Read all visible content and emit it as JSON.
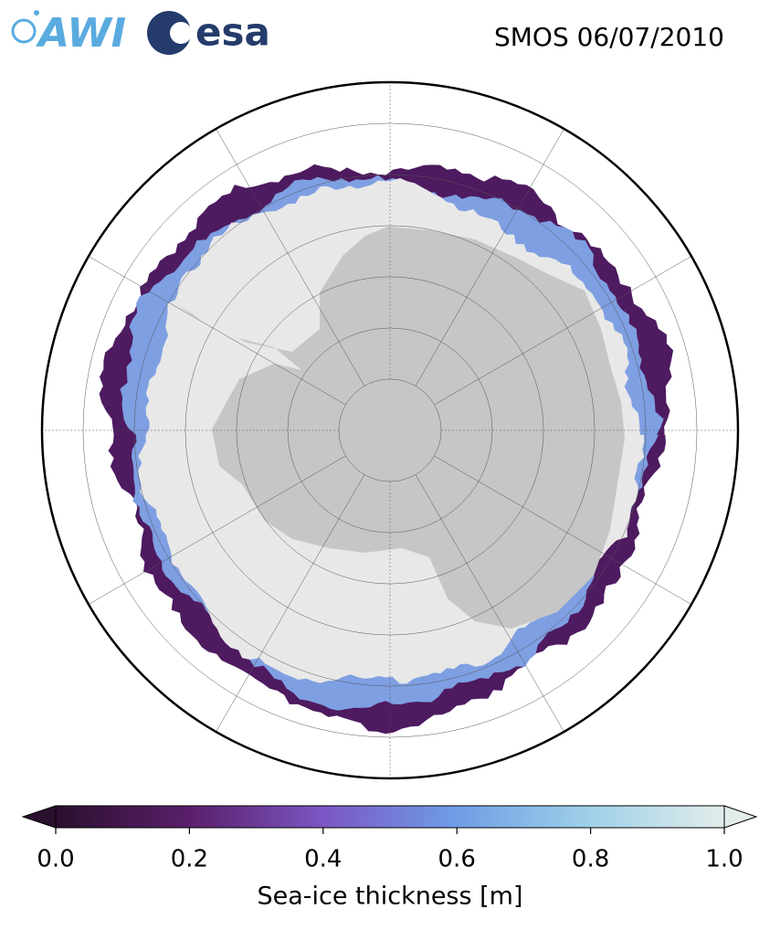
{
  "header": {
    "logos": [
      "AWI",
      "esa"
    ],
    "title": "SMOS 06/07/2010"
  },
  "colorbar": {
    "label": "Sea-ice thickness [m]",
    "lim": [
      0,
      1
    ],
    "ticks": [
      {
        "value": 0,
        "label": "0.0"
      },
      0.2,
      0.4,
      0.6,
      0.8,
      {
        "value": 1,
        "label": "1.0"
      }
    ],
    "colors": [
      "#2a0f2e",
      "#5a1f6a",
      "#7b56c4",
      "#6f9de6",
      "#9fd1e8",
      "#e2eceb"
    ]
  }
}
